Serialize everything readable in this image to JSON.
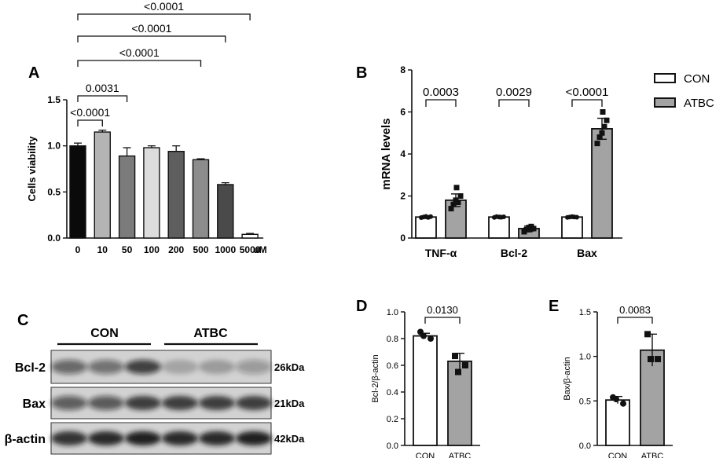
{
  "chart_data": [
    {
      "panel": "A",
      "type": "bar",
      "ylabel": "Cells viability",
      "unit_label": "uM",
      "ylim": [
        0,
        1.5
      ],
      "yticks": [
        "0.0",
        "0.5",
        "1.0",
        "1.5"
      ],
      "categories": [
        "0",
        "10",
        "50",
        "100",
        "200",
        "500",
        "1000",
        "5000"
      ],
      "values": [
        1.0,
        1.15,
        0.89,
        0.98,
        0.94,
        0.85,
        0.58,
        0.04
      ],
      "errors": [
        0.03,
        0.02,
        0.09,
        0.02,
        0.06,
        0.01,
        0.02,
        0.01
      ],
      "bar_colors": [
        "#0a0a0a",
        "#b4b4b4",
        "#7b7b7b",
        "#dcdcdc",
        "#5e5e5e",
        "#8c8c8c",
        "#4a4a4a",
        "#ffffff"
      ],
      "comparisons": [
        {
          "from": 0,
          "to": 1,
          "label": "<0.0001"
        },
        {
          "from": 0,
          "to": 2,
          "label": "0.0031"
        },
        {
          "from": 0,
          "to": 5,
          "label": "<0.0001"
        },
        {
          "from": 0,
          "to": 6,
          "label": "<0.0001"
        },
        {
          "from": 0,
          "to": 7,
          "label": "<0.0001"
        }
      ]
    },
    {
      "panel": "B",
      "type": "bar",
      "ylabel": "mRNA levels",
      "ylim": [
        0,
        8
      ],
      "yticks": [
        "0",
        "2",
        "4",
        "6",
        "8"
      ],
      "categories": [
        "TNF-α",
        "Bcl-2",
        "Bax"
      ],
      "legend_position": "top-right",
      "series": [
        {
          "name": "CON",
          "color": "#ffffff",
          "values": [
            1.0,
            1.0,
            1.0
          ],
          "errors": [
            0.04,
            0.04,
            0.04
          ],
          "points": [
            [
              0.97,
              1.0,
              1.03,
              0.98,
              1.02,
              1.0
            ],
            [
              0.98,
              1.02,
              1.0,
              0.99,
              1.01,
              1.0
            ],
            [
              0.98,
              1.0,
              1.02,
              1.0,
              0.99,
              1.01
            ]
          ]
        },
        {
          "name": "ATBC",
          "color": "#a3a3a3",
          "values": [
            1.8,
            0.45,
            5.2
          ],
          "errors": [
            0.3,
            0.12,
            0.5
          ],
          "points": [
            [
              1.4,
              1.6,
              1.8,
              1.7,
              2.0,
              2.4
            ],
            [
              0.3,
              0.4,
              0.5,
              0.55,
              0.45,
              0.4
            ],
            [
              4.5,
              4.8,
              5.0,
              5.3,
              5.6,
              6.0
            ]
          ]
        }
      ],
      "comparisons": [
        {
          "category": 0,
          "label": "0.0003"
        },
        {
          "category": 1,
          "label": "0.0029"
        },
        {
          "category": 2,
          "label": "<0.0001"
        }
      ]
    },
    {
      "panel": "D",
      "type": "bar",
      "ylabel": "Bcl-2/β-actin",
      "ylim": [
        0,
        1.0
      ],
      "yticks": [
        "0.0",
        "0.2",
        "0.4",
        "0.6",
        "0.8",
        "1.0"
      ],
      "categories": [
        "CON",
        "ATBC"
      ],
      "values": [
        0.82,
        0.63
      ],
      "errors": [
        0.02,
        0.06
      ],
      "bar_colors": [
        "#ffffff",
        "#a3a3a3"
      ],
      "points": [
        [
          0.85,
          0.8,
          0.82
        ],
        [
          0.67,
          0.6,
          0.55
        ]
      ],
      "comparisons": [
        {
          "from": 0,
          "to": 1,
          "label": "0.0130"
        }
      ]
    },
    {
      "panel": "E",
      "type": "bar",
      "ylabel": "Bax/β-actin",
      "ylim": [
        0,
        1.5
      ],
      "yticks": [
        "0.0",
        "0.5",
        "1.0",
        "1.5"
      ],
      "categories": [
        "CON",
        "ATBC"
      ],
      "values": [
        0.51,
        1.07
      ],
      "errors": [
        0.04,
        0.18
      ],
      "bar_colors": [
        "#ffffff",
        "#a3a3a3"
      ],
      "points": [
        [
          0.54,
          0.47,
          0.52
        ],
        [
          1.25,
          0.97,
          0.97
        ]
      ],
      "comparisons": [
        {
          "from": 0,
          "to": 1,
          "label": "0.0083"
        }
      ]
    }
  ],
  "blot": {
    "panel": "C",
    "groups": [
      "CON",
      "ATBC"
    ],
    "rows": [
      {
        "label": "Bcl-2",
        "kda": "26kDa"
      },
      {
        "label": "Bax",
        "kda": "21kDa"
      },
      {
        "label": "β-actin",
        "kda": "42kDa"
      }
    ]
  },
  "panel_labels": {
    "a": "A",
    "b": "B",
    "c": "C",
    "d": "D",
    "e": "E"
  }
}
